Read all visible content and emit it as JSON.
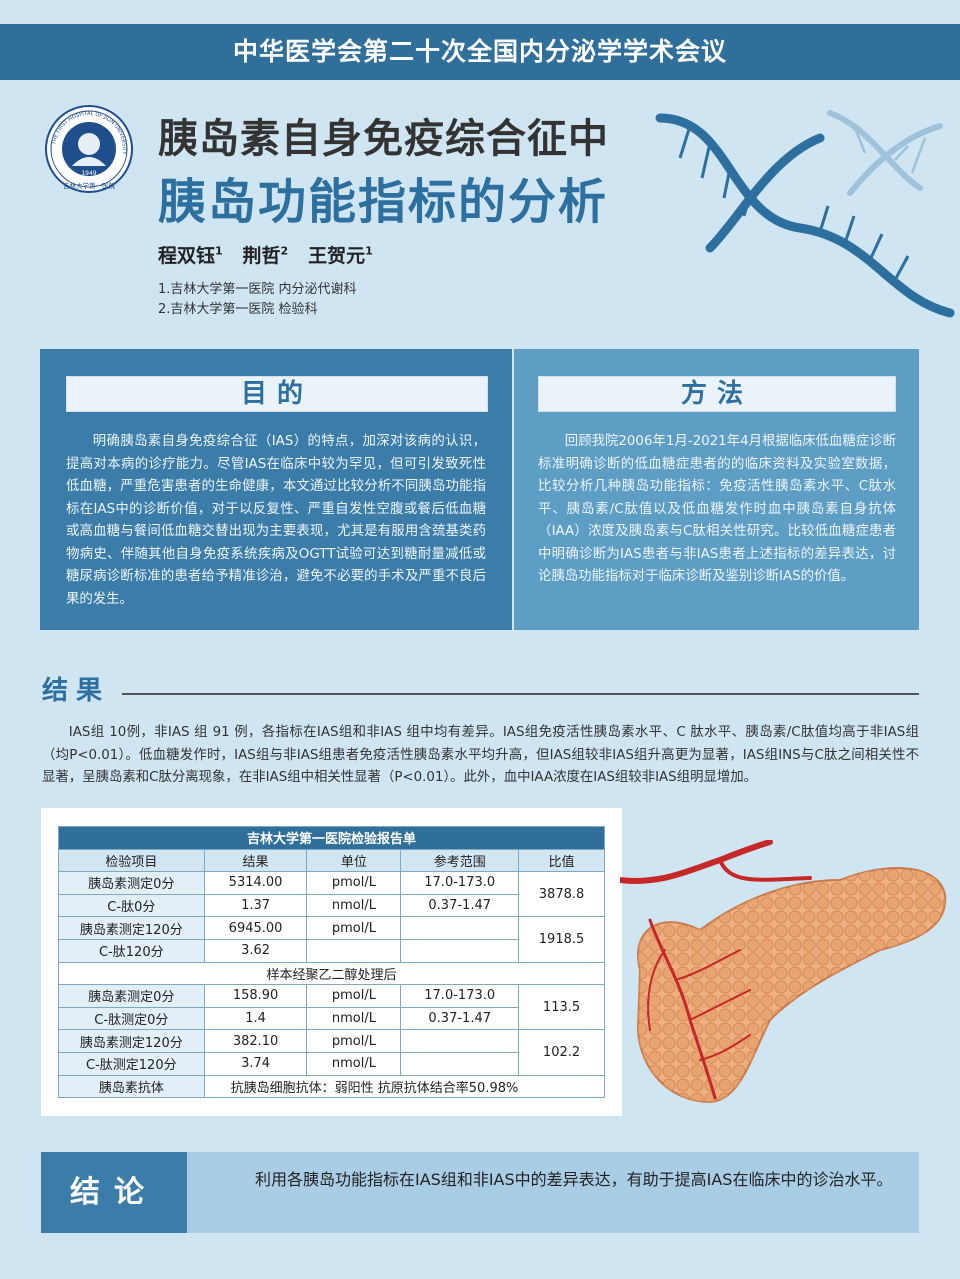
{
  "header": {
    "title": "中华医学会第二十次全国内分泌学学术会议"
  },
  "logo": {
    "ring_text": "THE FIRST HOSPITAL OF JILIN UNIVERSITY",
    "year": "1949",
    "bottom_text": "吉林大学第一医院"
  },
  "poster": {
    "title_line1": "胰岛素自身免疫综合征中",
    "title_line2": "胰岛功能指标的分析",
    "authors": [
      {
        "name": "程双钰",
        "sup": "1"
      },
      {
        "name": "荆哲",
        "sup": "2"
      },
      {
        "name": "王贺元",
        "sup": "1"
      }
    ],
    "affiliations": [
      "1.吉林大学第一医院 内分泌代谢科",
      "2.吉林大学第一医院 检验科"
    ]
  },
  "purpose": {
    "title": "目的",
    "text": "明确胰岛素自身免疫综合征（IAS）的特点，加深对该病的认识，提高对本病的诊疗能力。尽管IAS在临床中较为罕见，但可引发致死性低血糖，严重危害患者的生命健康，本文通过比较分析不同胰岛功能指标在IAS中的诊断价值，对于以反复性、严重自发性空腹或餐后低血糖或高血糖与餐间低血糖交替出现为主要表现，尤其是有服用含巯基类药物病史、伴随其他自身免疫系统疾病及OGTT试验可达到糖耐量减低或糖尿病诊断标准的患者给予精准诊治，避免不必要的手术及严重不良后果的发生。"
  },
  "method": {
    "title": "方法",
    "text": "回顾我院2006年1月-2021年4月根据临床低血糖症诊断标准明确诊断的低血糖症患者的的临床资料及实验室数据，比较分析几种胰岛功能指标：免疫活性胰岛素水平、C肽水平、胰岛素/C肽值以及低血糖发作时血中胰岛素自身抗体（IAA）浓度及胰岛素与C肽相关性研究。比较低血糖症患者中明确诊断为IAS患者与非IAS患者上述指标的差异表达，讨论胰岛功能指标对于临床诊断及鉴别诊断IAS的价值。"
  },
  "results": {
    "title": "结果",
    "text": "IAS组 10例，非IAS 组 91 例，各指标在IAS组和非IAS 组中均有差异。IAS组免疫活性胰岛素水平、C 肽水平、胰岛素/C肽值均高于非IAS组（均P<0.01）。低血糖发作时，IAS组与非IAS组患者免疫活性胰岛素水平均升高，但IAS组较非IAS组升高更为显著，IAS组INS与C肽之间相关性不显著，呈胰岛素和C肽分离现象，在非IAS组中相关性显著（P<0.01）。此外，血中IAA浓度在IAS组较非IAS组明显增加。"
  },
  "table": {
    "caption": "吉林大学第一医院检验报告单",
    "headers": [
      "检验项目",
      "结果",
      "单位",
      "参考范围",
      "比值"
    ],
    "rows": [
      {
        "item": "胰岛素测定0分",
        "result": "5314.00",
        "unit": "pmol/L",
        "range": "17.0-173.0"
      },
      {
        "item": "C-肽0分",
        "result": "1.37",
        "unit": "nmol/L",
        "range": "0.37-1.47"
      },
      {
        "item": "胰岛素测定120分",
        "result": "6945.00",
        "unit": "pmol/L",
        "range": ""
      },
      {
        "item": "C-肽120分",
        "result": "3.62",
        "unit": "",
        "range": ""
      },
      {
        "item": "胰岛素测定0分",
        "result": "158.90",
        "unit": "pmol/L",
        "range": "17.0-173.0"
      },
      {
        "item": "C-肽测定0分",
        "result": "1.4",
        "unit": "nmol/L",
        "range": "0.37-1.47"
      },
      {
        "item": "胰岛素测定120分",
        "result": "382.10",
        "unit": "pmol/L",
        "range": ""
      },
      {
        "item": "C-肽测定120分",
        "result": "3.74",
        "unit": "nmol/L",
        "range": ""
      }
    ],
    "ratios": [
      "3878.8",
      "1918.5",
      "113.5",
      "102.2"
    ],
    "peg_note": "样本经聚乙二醇处理后",
    "antibody_label": "胰岛素抗体",
    "antibody_value": "抗胰岛细胞抗体：弱阳性    抗原抗体结合率50.98%"
  },
  "conclusion": {
    "title": "结论",
    "text": "利用各胰岛功能指标在IAS组和非IAS中的差异表达，有助于提高IAS在临床中的诊治水平。"
  },
  "colors": {
    "primary": "#2f6f9a",
    "title_blue": "#2d6f9e",
    "background": "#cfe5f2",
    "panel_light": "#5e9dc4"
  }
}
